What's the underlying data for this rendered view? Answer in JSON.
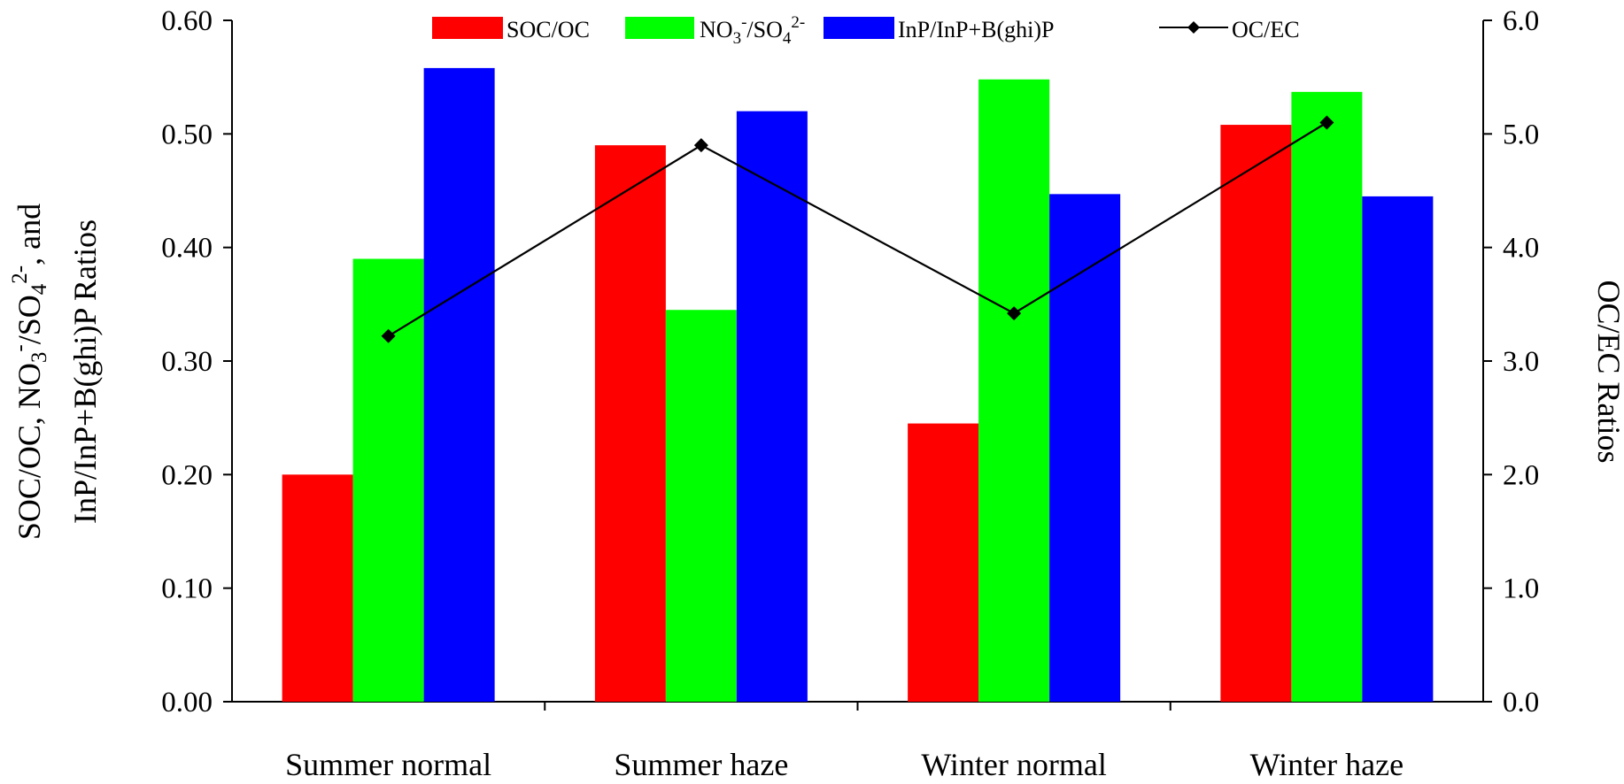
{
  "chart_data": {
    "type": "bar",
    "categories": [
      "Summer normal",
      "Summer haze",
      "Winter normal",
      "Winter haze"
    ],
    "series": [
      {
        "name": "SOC/OC",
        "axis": "left",
        "kind": "bar",
        "color": "#ff0000",
        "values": [
          0.2,
          0.49,
          0.245,
          0.508
        ]
      },
      {
        "name": "NO3-/SO42-",
        "axis": "left",
        "kind": "bar",
        "color": "#00ff00",
        "values": [
          0.39,
          0.345,
          0.548,
          0.537
        ]
      },
      {
        "name": "InP/InP+B(ghi)P",
        "axis": "left",
        "kind": "bar",
        "color": "#0000ff",
        "values": [
          0.558,
          0.52,
          0.447,
          0.445
        ]
      },
      {
        "name": "OC/EC",
        "axis": "right",
        "kind": "line",
        "marker": "diamond",
        "color": "#000000",
        "values": [
          3.22,
          4.9,
          3.42,
          5.1
        ]
      }
    ],
    "y_left": {
      "label_line1": "SOC/OC, NO3-/SO42-, and",
      "label_line2": "InP/InP+B(ghi)P Ratios",
      "ylim": [
        0,
        0.6
      ],
      "ticks": [
        "0.00",
        "0.10",
        "0.20",
        "0.30",
        "0.40",
        "0.50",
        "0.60"
      ]
    },
    "y_right": {
      "label": "OC/EC Ratios",
      "ylim": [
        0,
        6
      ],
      "ticks": [
        "0.0",
        "1.0",
        "2.0",
        "3.0",
        "4.0",
        "5.0",
        "6.0"
      ]
    },
    "legend": {
      "placement": "top",
      "entries": [
        "SOC/OC",
        "NO3-/SO42-",
        "InP/InP+B(ghi)P",
        "OC/EC"
      ]
    },
    "grid": false
  }
}
